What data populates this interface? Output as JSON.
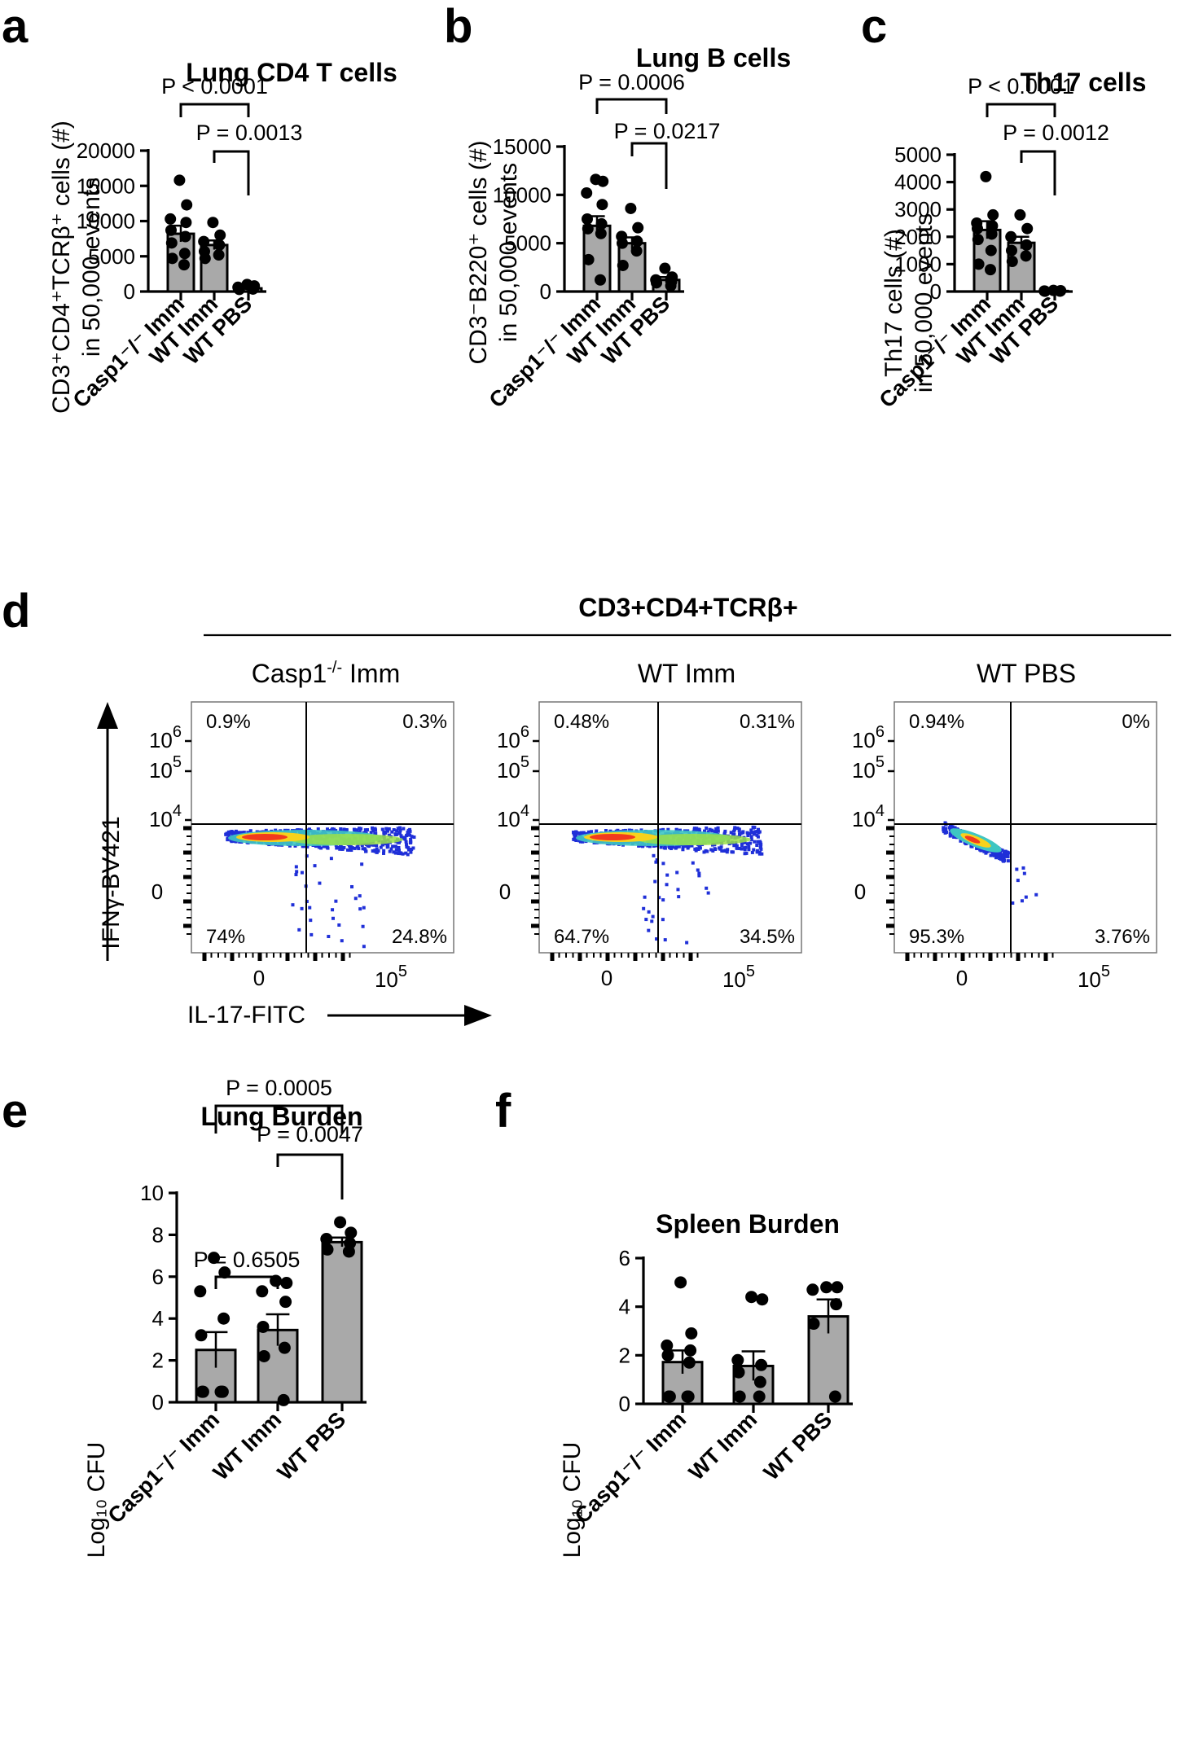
{
  "colors": {
    "bar_fill": "#a9a9a9",
    "point": "#000000",
    "density_low": "#1f2fd8",
    "density_mid": "#3ec6c2",
    "density_high": "#f23a1e"
  },
  "panels_bar": [
    {
      "id": "a",
      "letter": "a",
      "title": "Lung CD4 T cells",
      "ylabel_line1": "CD3⁺CD4⁺TCRβ⁺ cells (#)",
      "ylabel_line2": "in 50,000 events",
      "categories": [
        "Casp1⁻/⁻ Imm",
        "WT Imm",
        "WT PBS"
      ]
    },
    {
      "id": "b",
      "letter": "b",
      "title": "Lung B cells",
      "ylabel_line1": "CD3⁻B220⁺ cells (#)",
      "ylabel_line2": "in 50,000 events",
      "categories": [
        "Casp1⁻/⁻ Imm",
        "WT Imm",
        "WT PBS"
      ]
    },
    {
      "id": "c",
      "letter": "c",
      "title": "Th17 cells",
      "ylabel_line1": "Th17 cells (#)",
      "ylabel_line2": "in 50,000 events",
      "categories": [
        "Casp1⁻/⁻ Imm",
        "WT Imm",
        "WT PBS"
      ]
    },
    {
      "id": "e",
      "letter": "e",
      "title": "Lung Burden",
      "ylabel_line1": "Log₁₀ CFU",
      "ylabel_line2": "",
      "categories": [
        "Casp1⁻/⁻ Imm",
        "WT Imm",
        "WT PBS"
      ]
    },
    {
      "id": "f",
      "letter": "f",
      "title": "Spleen Burden",
      "ylabel_line1": "Log₁₀ CFU",
      "ylabel_line2": "",
      "categories": [
        "Casp1⁻/⁻ Imm",
        "WT Imm",
        "WT PBS"
      ]
    }
  ],
  "chart_data": [
    {
      "panel": "a",
      "type": "bar",
      "title": "Lung CD4 T cells",
      "ylabel": "CD3+CD4+TCRβ+ cells (#) in 50,000 events",
      "categories": [
        "Casp1-/- Imm",
        "WT Imm",
        "WT PBS"
      ],
      "ylim": [
        0,
        20000
      ],
      "yticks": [
        0,
        5000,
        10000,
        15000,
        20000
      ],
      "means": [
        8200,
        6600,
        450
      ],
      "sem": [
        1150,
        650,
        100
      ],
      "points": [
        [
          15800,
          12300,
          10300,
          9800,
          8700,
          7800,
          6900,
          5400,
          4700,
          3800
        ],
        [
          9800,
          8000,
          7100,
          6600,
          5700,
          5200,
          4700
        ],
        [
          1000,
          800,
          600,
          500,
          400,
          350,
          300
        ]
      ],
      "comparisons": [
        {
          "from": 0,
          "to": 2,
          "label": "P < 0.0001"
        },
        {
          "from": 1,
          "to": 2,
          "label": "P = 0.0013"
        }
      ]
    },
    {
      "panel": "b",
      "type": "bar",
      "title": "Lung B cells",
      "ylabel": "CD3-B220+ cells (#) in 50,000 events",
      "categories": [
        "Casp1-/- Imm",
        "WT Imm",
        "WT PBS"
      ],
      "ylim": [
        0,
        15000
      ],
      "yticks": [
        0,
        5000,
        10000,
        15000
      ],
      "means": [
        6800,
        5000,
        1200
      ],
      "sem": [
        1000,
        600,
        300
      ],
      "points": [
        [
          11600,
          11400,
          10200,
          9000,
          7500,
          7000,
          6500,
          6000,
          3300,
          1200
        ],
        [
          8600,
          6600,
          5700,
          5200,
          5000,
          4200,
          2700
        ],
        [
          2400,
          1500,
          1200,
          1000,
          900,
          600
        ]
      ],
      "comparisons": [
        {
          "from": 0,
          "to": 2,
          "label": "P = 0.0006"
        },
        {
          "from": 1,
          "to": 2,
          "label": "P = 0.0217"
        }
      ]
    },
    {
      "panel": "c",
      "type": "bar",
      "title": "Th17 cells",
      "ylabel": "Th17 cells (#) in 50,000 events",
      "categories": [
        "Casp1-/- Imm",
        "WT Imm",
        "WT PBS"
      ],
      "ylim": [
        0,
        5000
      ],
      "yticks": [
        0,
        1000,
        2000,
        3000,
        4000,
        5000
      ],
      "means": [
        2250,
        1780,
        20
      ],
      "sem": [
        320,
        220,
        10
      ],
      "points": [
        [
          4200,
          2800,
          2500,
          2400,
          2300,
          2100,
          1900,
          1500,
          1000,
          800
        ],
        [
          2800,
          2300,
          2000,
          1700,
          1500,
          1300,
          1100
        ],
        [
          40,
          30,
          20,
          15,
          10
        ]
      ],
      "comparisons": [
        {
          "from": 0,
          "to": 2,
          "label": "P < 0.0001"
        },
        {
          "from": 1,
          "to": 2,
          "label": "P = 0.0012"
        }
      ]
    },
    {
      "panel": "e",
      "type": "bar",
      "title": "Lung Burden",
      "ylabel": "Log10 CFU",
      "categories": [
        "Casp1-/- Imm",
        "WT Imm",
        "WT PBS"
      ],
      "ylim": [
        0,
        10
      ],
      "yticks": [
        0,
        2,
        4,
        6,
        8,
        10
      ],
      "means": [
        2.5,
        3.45,
        7.65
      ],
      "sem": [
        0.85,
        0.75,
        0.22
      ],
      "points": [
        [
          6.9,
          6.2,
          5.3,
          4.0,
          3.2,
          0.5,
          0.5,
          0.5,
          0.5,
          0.5
        ],
        [
          5.8,
          5.7,
          5.3,
          4.8,
          3.6,
          2.6,
          2.2,
          0.1
        ],
        [
          8.6,
          8.1,
          7.8,
          7.6,
          7.3,
          7.2
        ]
      ],
      "comparisons": [
        {
          "from": 0,
          "to": 2,
          "label": "P = 0.0005"
        },
        {
          "from": 1,
          "to": 2,
          "label": "P = 0.0047"
        },
        {
          "from": 0,
          "to": 1,
          "label": "P = 0.6505"
        }
      ]
    },
    {
      "panel": "f",
      "type": "bar",
      "title": "Spleen Burden",
      "ylabel": "Log10 CFU",
      "categories": [
        "Casp1-/- Imm",
        "WT Imm",
        "WT PBS"
      ],
      "ylim": [
        0,
        6
      ],
      "yticks": [
        0,
        2,
        4,
        6
      ],
      "means": [
        1.72,
        1.56,
        3.6
      ],
      "sem": [
        0.48,
        0.6,
        0.7
      ],
      "points": [
        [
          5.0,
          2.9,
          2.4,
          2.2,
          2.0,
          1.7,
          0.3,
          0.3,
          0.3,
          0.3
        ],
        [
          4.4,
          4.3,
          1.8,
          1.6,
          1.3,
          0.9,
          0.3,
          0.3
        ],
        [
          4.8,
          4.8,
          4.7,
          4.1,
          3.3,
          0.3
        ]
      ],
      "comparisons": []
    },
    {
      "panel": "d",
      "type": "scatter",
      "title": "CD3+CD4+TCRβ+",
      "xlabel": "IL-17-FITC",
      "ylabel": "IFNγ-BV421",
      "plots": [
        {
          "name": "Casp1-/- Imm",
          "quadrants": {
            "upper_left": "0.9%",
            "upper_right": "0.3%",
            "lower_left": "74%",
            "lower_right": "24.8%"
          }
        },
        {
          "name": "WT Imm",
          "quadrants": {
            "upper_left": "0.48%",
            "upper_right": "0.31%",
            "lower_left": "64.7%",
            "lower_right": "34.5%"
          }
        },
        {
          "name": "WT PBS",
          "quadrants": {
            "upper_left": "0.94%",
            "upper_right": "0%",
            "lower_left": "95.3%",
            "lower_right": "3.76%"
          }
        }
      ]
    }
  ],
  "flow": {
    "letter": "d",
    "header": "CD3+CD4+TCRβ+",
    "xlabel": "IL-17-FITC",
    "ylabel": "IFNγ-BV421",
    "ytick_labels": {
      "e6": "10",
      "e5": "10",
      "e4": "10",
      "zero": "0",
      "exp6": "6",
      "exp5": "5",
      "exp4": "4"
    },
    "xtick_labels": {
      "zero": "0",
      "e5": "10",
      "exp5": "5"
    },
    "plots": [
      {
        "title_main": "Casp1",
        "title_sup": "-/-",
        "title_rest": " Imm",
        "ul": "0.9%",
        "ur": "0.3%",
        "ll": "74%",
        "lr": "24.8%"
      },
      {
        "title_main": "WT Imm",
        "title_sup": "",
        "title_rest": "",
        "ul": "0.48%",
        "ur": "0.31%",
        "ll": "64.7%",
        "lr": "34.5%"
      },
      {
        "title_main": "WT PBS",
        "title_sup": "",
        "title_rest": "",
        "ul": "0.94%",
        "ur": "0%",
        "ll": "95.3%",
        "lr": "3.76%"
      }
    ]
  }
}
